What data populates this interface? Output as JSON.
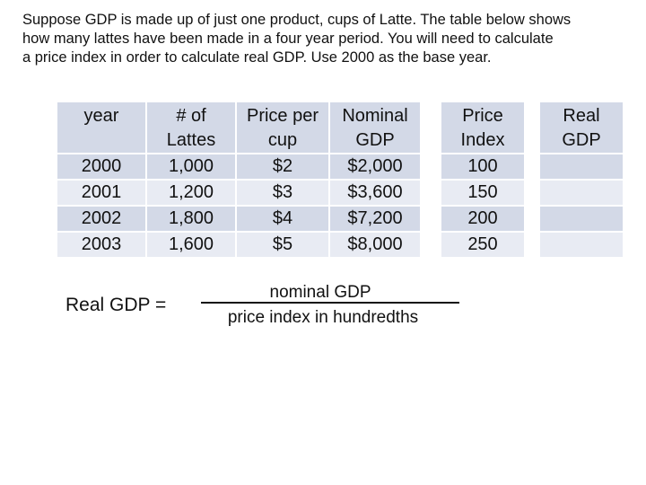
{
  "intro": {
    "lines": [
      "Suppose GDP is made up of just one product, cups of Latte.  The table below shows",
      "how many lattes have been made in a four year period.  You will need to calculate",
      "a price index in order to calculate real GDP.  Use 2000 as the base year."
    ]
  },
  "table": {
    "headers": {
      "year": [
        "year"
      ],
      "lattes": [
        "# of",
        "Lattes"
      ],
      "price": [
        "Price per",
        "cup"
      ],
      "nominal": [
        "Nominal",
        "GDP"
      ],
      "index": [
        "Price",
        "Index"
      ],
      "real": [
        "Real",
        "GDP"
      ]
    },
    "rows": [
      {
        "year": "2000",
        "lattes": "1,000",
        "price": "$2",
        "nominal": "$2,000",
        "index": "100",
        "real": ""
      },
      {
        "year": "2001",
        "lattes": "1,200",
        "price": "$3",
        "nominal": "$3,600",
        "index": "150",
        "real": ""
      },
      {
        "year": "2002",
        "lattes": "1,800",
        "price": "$4",
        "nominal": "$7,200",
        "index": "200",
        "real": ""
      },
      {
        "year": "2003",
        "lattes": "1,600",
        "price": "$5",
        "nominal": "$8,000",
        "index": "250",
        "real": ""
      }
    ]
  },
  "formula": {
    "label": "Real GDP  =",
    "numerator": "nominal GDP",
    "denominator": "price index in hundredths"
  }
}
